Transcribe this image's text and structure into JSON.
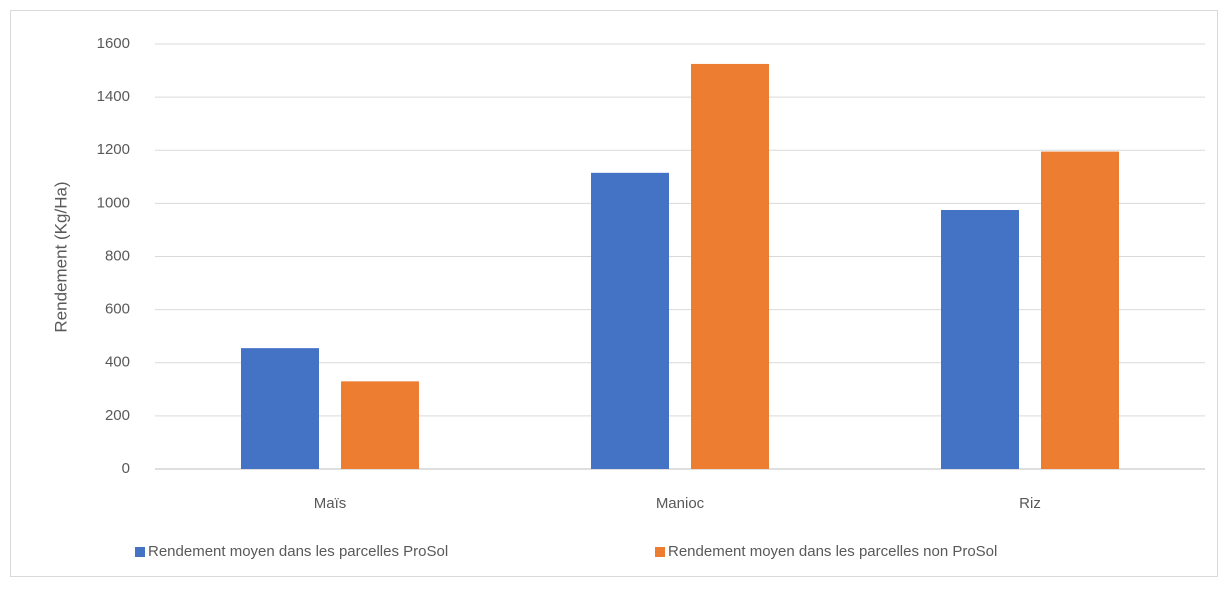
{
  "chart_data": {
    "type": "bar",
    "y_axis_label": "Rendement (Kg/Ha)",
    "categories": [
      "Maïs",
      "Manioc",
      "Riz"
    ],
    "series": [
      {
        "name": "Rendement moyen dans les parcelles ProSol",
        "color": "#4472c4",
        "values": [
          455,
          1115,
          975
        ]
      },
      {
        "name": "Rendement moyen dans les parcelles non ProSol",
        "color": "#ed7d31",
        "values": [
          330,
          1525,
          1195
        ]
      }
    ],
    "ylim": [
      0,
      1600
    ],
    "yticks": [
      0,
      200,
      400,
      600,
      800,
      1000,
      1200,
      1400,
      1600
    ],
    "grid": true,
    "legend": "bottom"
  }
}
